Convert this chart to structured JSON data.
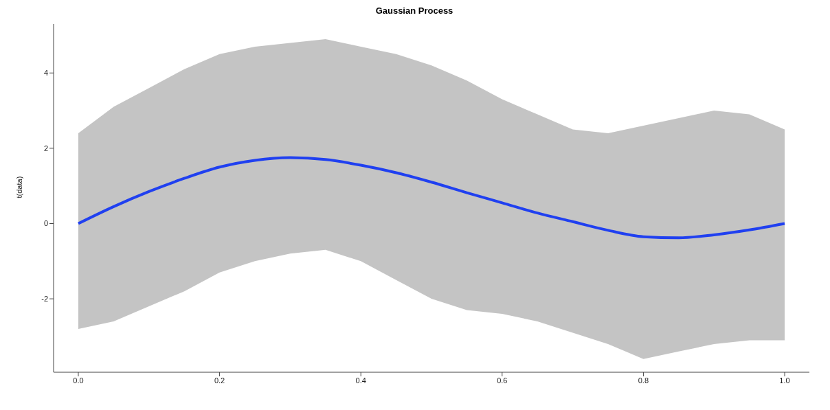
{
  "chart_data": {
    "type": "line",
    "title": "Gaussian Process",
    "ylabel": "t(data)",
    "x": [
      0,
      0.05,
      0.1,
      0.15,
      0.2,
      0.25,
      0.3,
      0.35,
      0.4,
      0.45,
      0.5,
      0.55,
      0.6,
      0.65,
      0.7,
      0.75,
      0.8,
      0.85,
      0.9,
      0.95,
      1.0
    ],
    "series": [
      {
        "color": "#2040f0",
        "values": [
          0,
          0.45,
          0.85,
          1.2,
          1.5,
          1.68,
          1.75,
          1.7,
          1.55,
          1.35,
          1.1,
          0.82,
          0.55,
          0.28,
          0.05,
          -0.18,
          -0.35,
          -0.38,
          -0.3,
          -0.17,
          0
        ],
        "lower": [
          -2.8,
          -2.6,
          -2.2,
          -1.8,
          -1.3,
          -1.0,
          -0.8,
          -0.7,
          -1.0,
          -1.5,
          -2.0,
          -2.3,
          -2.4,
          -2.6,
          -2.9,
          -3.2,
          -3.6,
          -3.4,
          -3.2,
          -3.1,
          -3.1
        ],
        "upper": [
          2.4,
          3.1,
          3.6,
          4.1,
          4.5,
          4.7,
          4.8,
          4.9,
          4.7,
          4.5,
          4.2,
          3.8,
          3.3,
          2.9,
          2.5,
          2.4,
          2.6,
          2.8,
          3.0,
          2.9,
          2.5
        ]
      }
    ],
    "xlim": [
      -0.035,
      1.035
    ],
    "xticks": [
      {
        "value": 0,
        "label": "0.0"
      },
      {
        "value": 0.2,
        "label": "0.2"
      },
      {
        "value": 0.4,
        "label": "0.4"
      },
      {
        "value": 0.6,
        "label": "0.6"
      },
      {
        "value": 0.8,
        "label": "0.8"
      },
      {
        "value": 1,
        "label": "1.0"
      }
    ],
    "ylim": [
      -3.95,
      5.3
    ],
    "yticks": [
      -2,
      0,
      2,
      4
    ],
    "grid": false,
    "legend": false,
    "marker": "none",
    "line_style": "solid"
  }
}
